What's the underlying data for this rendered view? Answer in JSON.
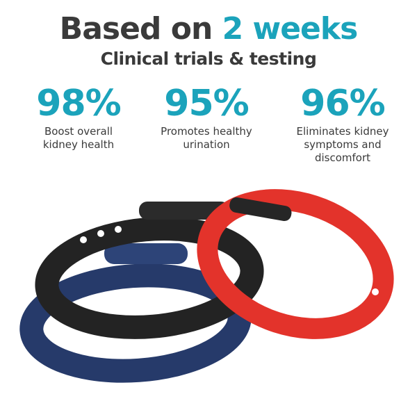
{
  "header": {
    "title_prefix": "Based on",
    "title_accent": "2 weeks",
    "subtitle": "Clinical trials & testing"
  },
  "stats": [
    {
      "value": "98%",
      "label_lines": [
        "Boost overall",
        "kidney health"
      ]
    },
    {
      "value": "95%",
      "label_lines": [
        "Promotes healthy",
        "urination"
      ]
    },
    {
      "value": "96%",
      "label_lines": [
        "Eliminates kidney",
        "symptoms and",
        "discomfort"
      ]
    }
  ],
  "colors": {
    "accent": "#1ba3bb",
    "text": "#3a3a3a",
    "bracelet_black": "#222222",
    "bracelet_navy": "#263a6a",
    "bracelet_red": "#e3332b"
  }
}
